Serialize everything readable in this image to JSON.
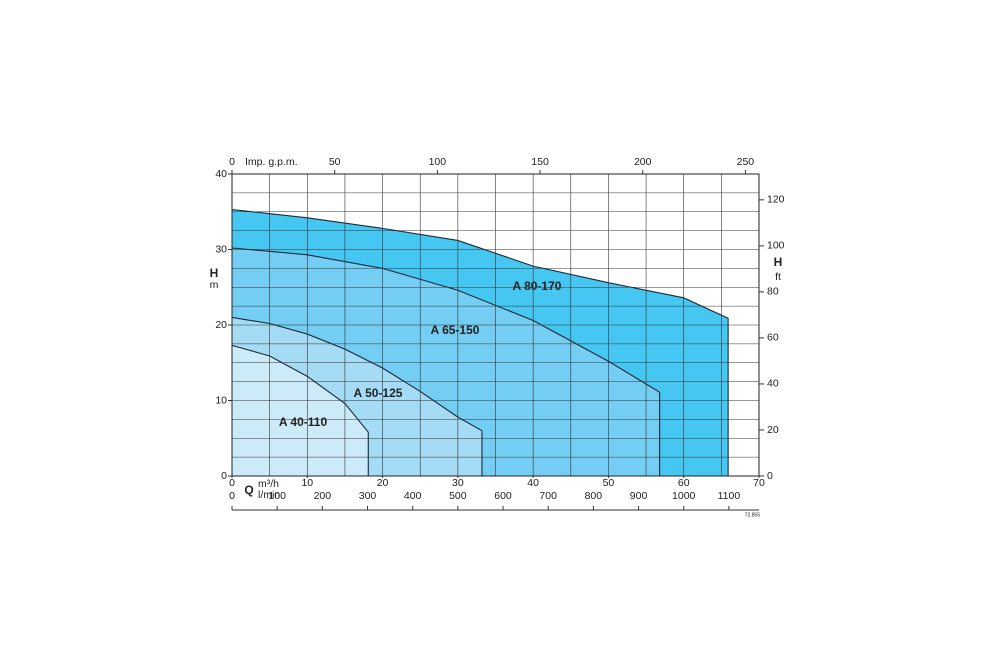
{
  "chart_data": {
    "type": "line",
    "series": [
      {
        "name": "A 80-170",
        "color": "#45c7f2",
        "x": [
          0,
          10,
          20,
          30,
          40,
          50,
          60,
          65.9
        ],
        "values": [
          35.3,
          34.2,
          32.8,
          31.2,
          27.8,
          25.6,
          23.6,
          20.9
        ]
      },
      {
        "name": "A 65-150",
        "color": "#74cdf3",
        "x": [
          0,
          10,
          20,
          30,
          40,
          50,
          56.8
        ],
        "values": [
          30.2,
          29.3,
          27.5,
          24.6,
          20.6,
          15.2,
          11.1
        ]
      },
      {
        "name": "A 50-125",
        "color": "#a5dbf5",
        "x": [
          0,
          5,
          10,
          15,
          20,
          25,
          30,
          33.2
        ],
        "values": [
          21.0,
          20.2,
          18.8,
          16.8,
          14.3,
          11.2,
          7.8,
          6.0
        ]
      },
      {
        "name": "A 40-110",
        "color": "#cdeaf9",
        "x": [
          0,
          5,
          10,
          15,
          18.1
        ],
        "values": [
          17.3,
          15.9,
          13.2,
          9.6,
          5.8
        ]
      }
    ],
    "xlim": [
      0,
      70
    ],
    "xticks": [
      0,
      10,
      20,
      30,
      40,
      50,
      60,
      70
    ],
    "xlabel": "Q",
    "xunit": "m³/h",
    "x2label": "Imp. g.p.m.",
    "x2lim": [
      0,
      256.62
    ],
    "x2ticks": [
      0,
      50,
      100,
      150,
      200,
      250
    ],
    "x3unit": "l/min",
    "x3lim": [
      0,
      1166.67
    ],
    "x3ticks": [
      0,
      100,
      200,
      300,
      400,
      500,
      600,
      700,
      800,
      900,
      1000,
      1100
    ],
    "ylabel": "H",
    "yunit": "m",
    "ylim": [
      0,
      40
    ],
    "yticks": [
      0,
      10,
      20,
      30,
      40
    ],
    "y2label": "H",
    "y2unit": "ft",
    "y2lim": [
      0,
      131.23
    ],
    "y2ticks": [
      0,
      20,
      40,
      60,
      80,
      100,
      120
    ],
    "grid_x": [
      0,
      5,
      10,
      15,
      20,
      25,
      30,
      35,
      40,
      45,
      50,
      55,
      60,
      65,
      70
    ],
    "grid_y": [
      0,
      2.5,
      5,
      7.5,
      10,
      12.5,
      15,
      17.5,
      20,
      22.5,
      25,
      27.5,
      30,
      32.5,
      35,
      37.5,
      40
    ],
    "code": "72.855"
  }
}
